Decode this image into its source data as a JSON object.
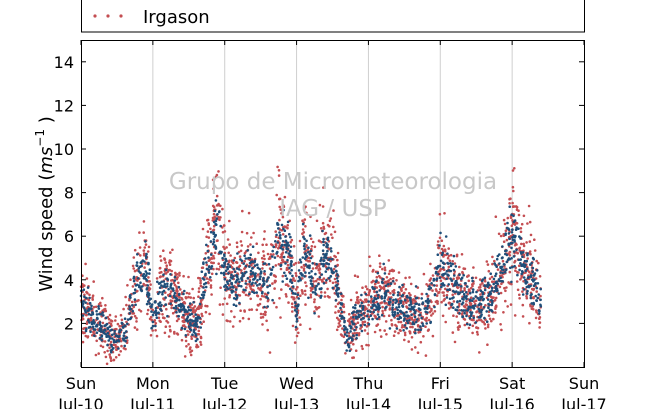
{
  "chart_data": {
    "type": "scatter",
    "ylabel_prefix": "Wind speed (",
    "ylabel_unit": "ms",
    "ylabel_exp": "−1",
    "ylabel_suffix": " )",
    "ylim": [
      0,
      15
    ],
    "yticks": [
      2,
      4,
      6,
      8,
      10,
      12,
      14
    ],
    "xlim": [
      "2016-07-10T00:00",
      "2016-07-17T00:00"
    ],
    "xticks": [
      {
        "day": "Sun",
        "date": "Jul-10"
      },
      {
        "day": "Mon",
        "date": "Jul-11"
      },
      {
        "day": "Tue",
        "date": "Jul-12"
      },
      {
        "day": "Wed",
        "date": "Jul-13"
      },
      {
        "day": "Thu",
        "date": "Jul-14"
      },
      {
        "day": "Fri",
        "date": "Jul-15"
      },
      {
        "day": "Sat",
        "date": "Jul-16"
      },
      {
        "day": "Sun",
        "date": "Jul-17"
      }
    ],
    "grid": "vertical",
    "legend_placement": "top",
    "legend": [
      {
        "label": "Irgason",
        "color": "#c44e52"
      }
    ],
    "watermark": [
      "Grupo de Micrometeorologia",
      "IAG / USP"
    ],
    "series": [
      {
        "name": "Irgason",
        "color": "#c44e52"
      },
      {
        "color": "#1f4e79"
      }
    ],
    "trend": {
      "x_days": [
        0,
        0.15,
        0.3,
        0.45,
        0.6,
        0.75,
        0.9,
        1.0,
        1.1,
        1.2,
        1.3,
        1.45,
        1.6,
        1.75,
        1.9,
        2.0,
        2.15,
        2.3,
        2.45,
        2.6,
        2.75,
        2.9,
        3.0,
        3.1,
        3.25,
        3.4,
        3.55,
        3.7,
        3.85,
        4.0,
        4.2,
        4.4,
        4.6,
        4.8,
        5.0,
        5.15,
        5.3,
        5.5,
        5.7,
        5.85,
        6.0,
        6.15,
        6.3,
        6.4
      ],
      "y_mean": [
        3.2,
        2.2,
        1.8,
        1.2,
        1.5,
        3.8,
        4.8,
        2.0,
        3.2,
        3.8,
        3.2,
        2.5,
        1.8,
        4.5,
        6.5,
        4.5,
        3.8,
        4.5,
        4.2,
        3.5,
        6.0,
        5.2,
        2.5,
        5.5,
        3.5,
        5.5,
        4.0,
        1.2,
        2.5,
        2.8,
        3.5,
        2.8,
        2.5,
        2.5,
        4.8,
        3.8,
        3.2,
        2.8,
        3.5,
        4.2,
        6.5,
        4.5,
        4.0,
        2.8
      ]
    }
  }
}
